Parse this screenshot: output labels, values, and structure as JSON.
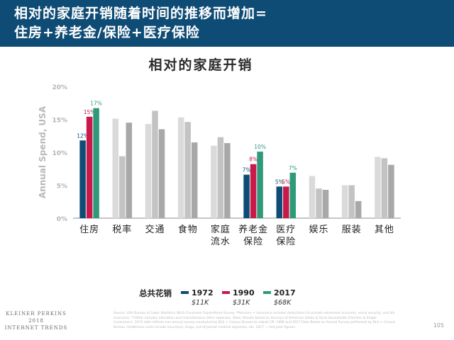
{
  "header": {
    "title": "相对的家庭开销随着时间的推移而增加=\n住房+养老金/保险+医疗保险"
  },
  "chart_data": {
    "type": "bar",
    "title": "相对的家庭开销",
    "ylabel": "Annual Spend, USA",
    "ylim": [
      0,
      20
    ],
    "yticks": [
      "0%",
      "5%",
      "10%",
      "15%",
      "20%"
    ],
    "categories": [
      "住房",
      "税率",
      "交通",
      "食物",
      "家庭\n流水",
      "养老金\n保险",
      "医疗\n保险",
      "娱乐",
      "服装",
      "其他"
    ],
    "series": [
      {
        "name": "1972",
        "values": [
          11.8,
          15.1,
          14.3,
          15.3,
          11.0,
          6.6,
          4.8,
          6.4,
          5.0,
          9.3
        ]
      },
      {
        "name": "1990",
        "values": [
          15.4,
          9.4,
          16.3,
          14.6,
          12.3,
          8.2,
          4.8,
          4.5,
          5.0,
          9.1
        ]
      },
      {
        "name": "2017",
        "values": [
          16.7,
          14.5,
          13.5,
          11.5,
          11.4,
          10.1,
          6.9,
          4.3,
          2.6,
          8.1
        ]
      }
    ],
    "bar_colors": {
      "highlight": [
        "#0f4c75",
        "#c8194a",
        "#2e9a7a"
      ],
      "muted": [
        "#dadada",
        "#c3c3c3",
        "#a8a8a8"
      ]
    },
    "highlighted_categories": [
      0,
      5,
      6
    ],
    "data_labels": [
      {
        "category": 0,
        "labels": [
          "12%",
          "15%",
          "17%"
        ]
      },
      {
        "category": 5,
        "labels": [
          "7%",
          "8%",
          "10%"
        ]
      },
      {
        "category": 6,
        "labels": [
          "5%",
          "5%",
          "7%"
        ]
      }
    ],
    "legend": {
      "title": "总共花销",
      "placement": "bottom",
      "items": [
        {
          "year": "1972",
          "total": "$11K"
        },
        {
          "year": "1990",
          "total": "$31K"
        },
        {
          "year": "2017",
          "total": "$68K"
        }
      ]
    },
    "grid": false
  },
  "footer": {
    "brand": "KLEINER PERKINS\n2018\nINTERNET TRENDS",
    "source": "Source: USA Bureau of Labor Statistics (BLS) Consumer Expenditure Survey. *Pensions + Insurance includes deductions for private retirement accounts, social security, and life insurance. **Other includes education and miscellaneous other expenses. Note: Results based on Surveys of American Urban & Rural Households (Families & Single Consumers). 1972 data reflects non-annual survey conducted by BLS + Census Bureau to adjust CPI. 1990 and 2017 Data Based on Annual Survey performed by BLS + Census Bureau. Healthcare costs include insurance, drugs, out-of-pocket medical expenses, etc. 2017 = mid-year figures.",
    "page_number": "105"
  }
}
